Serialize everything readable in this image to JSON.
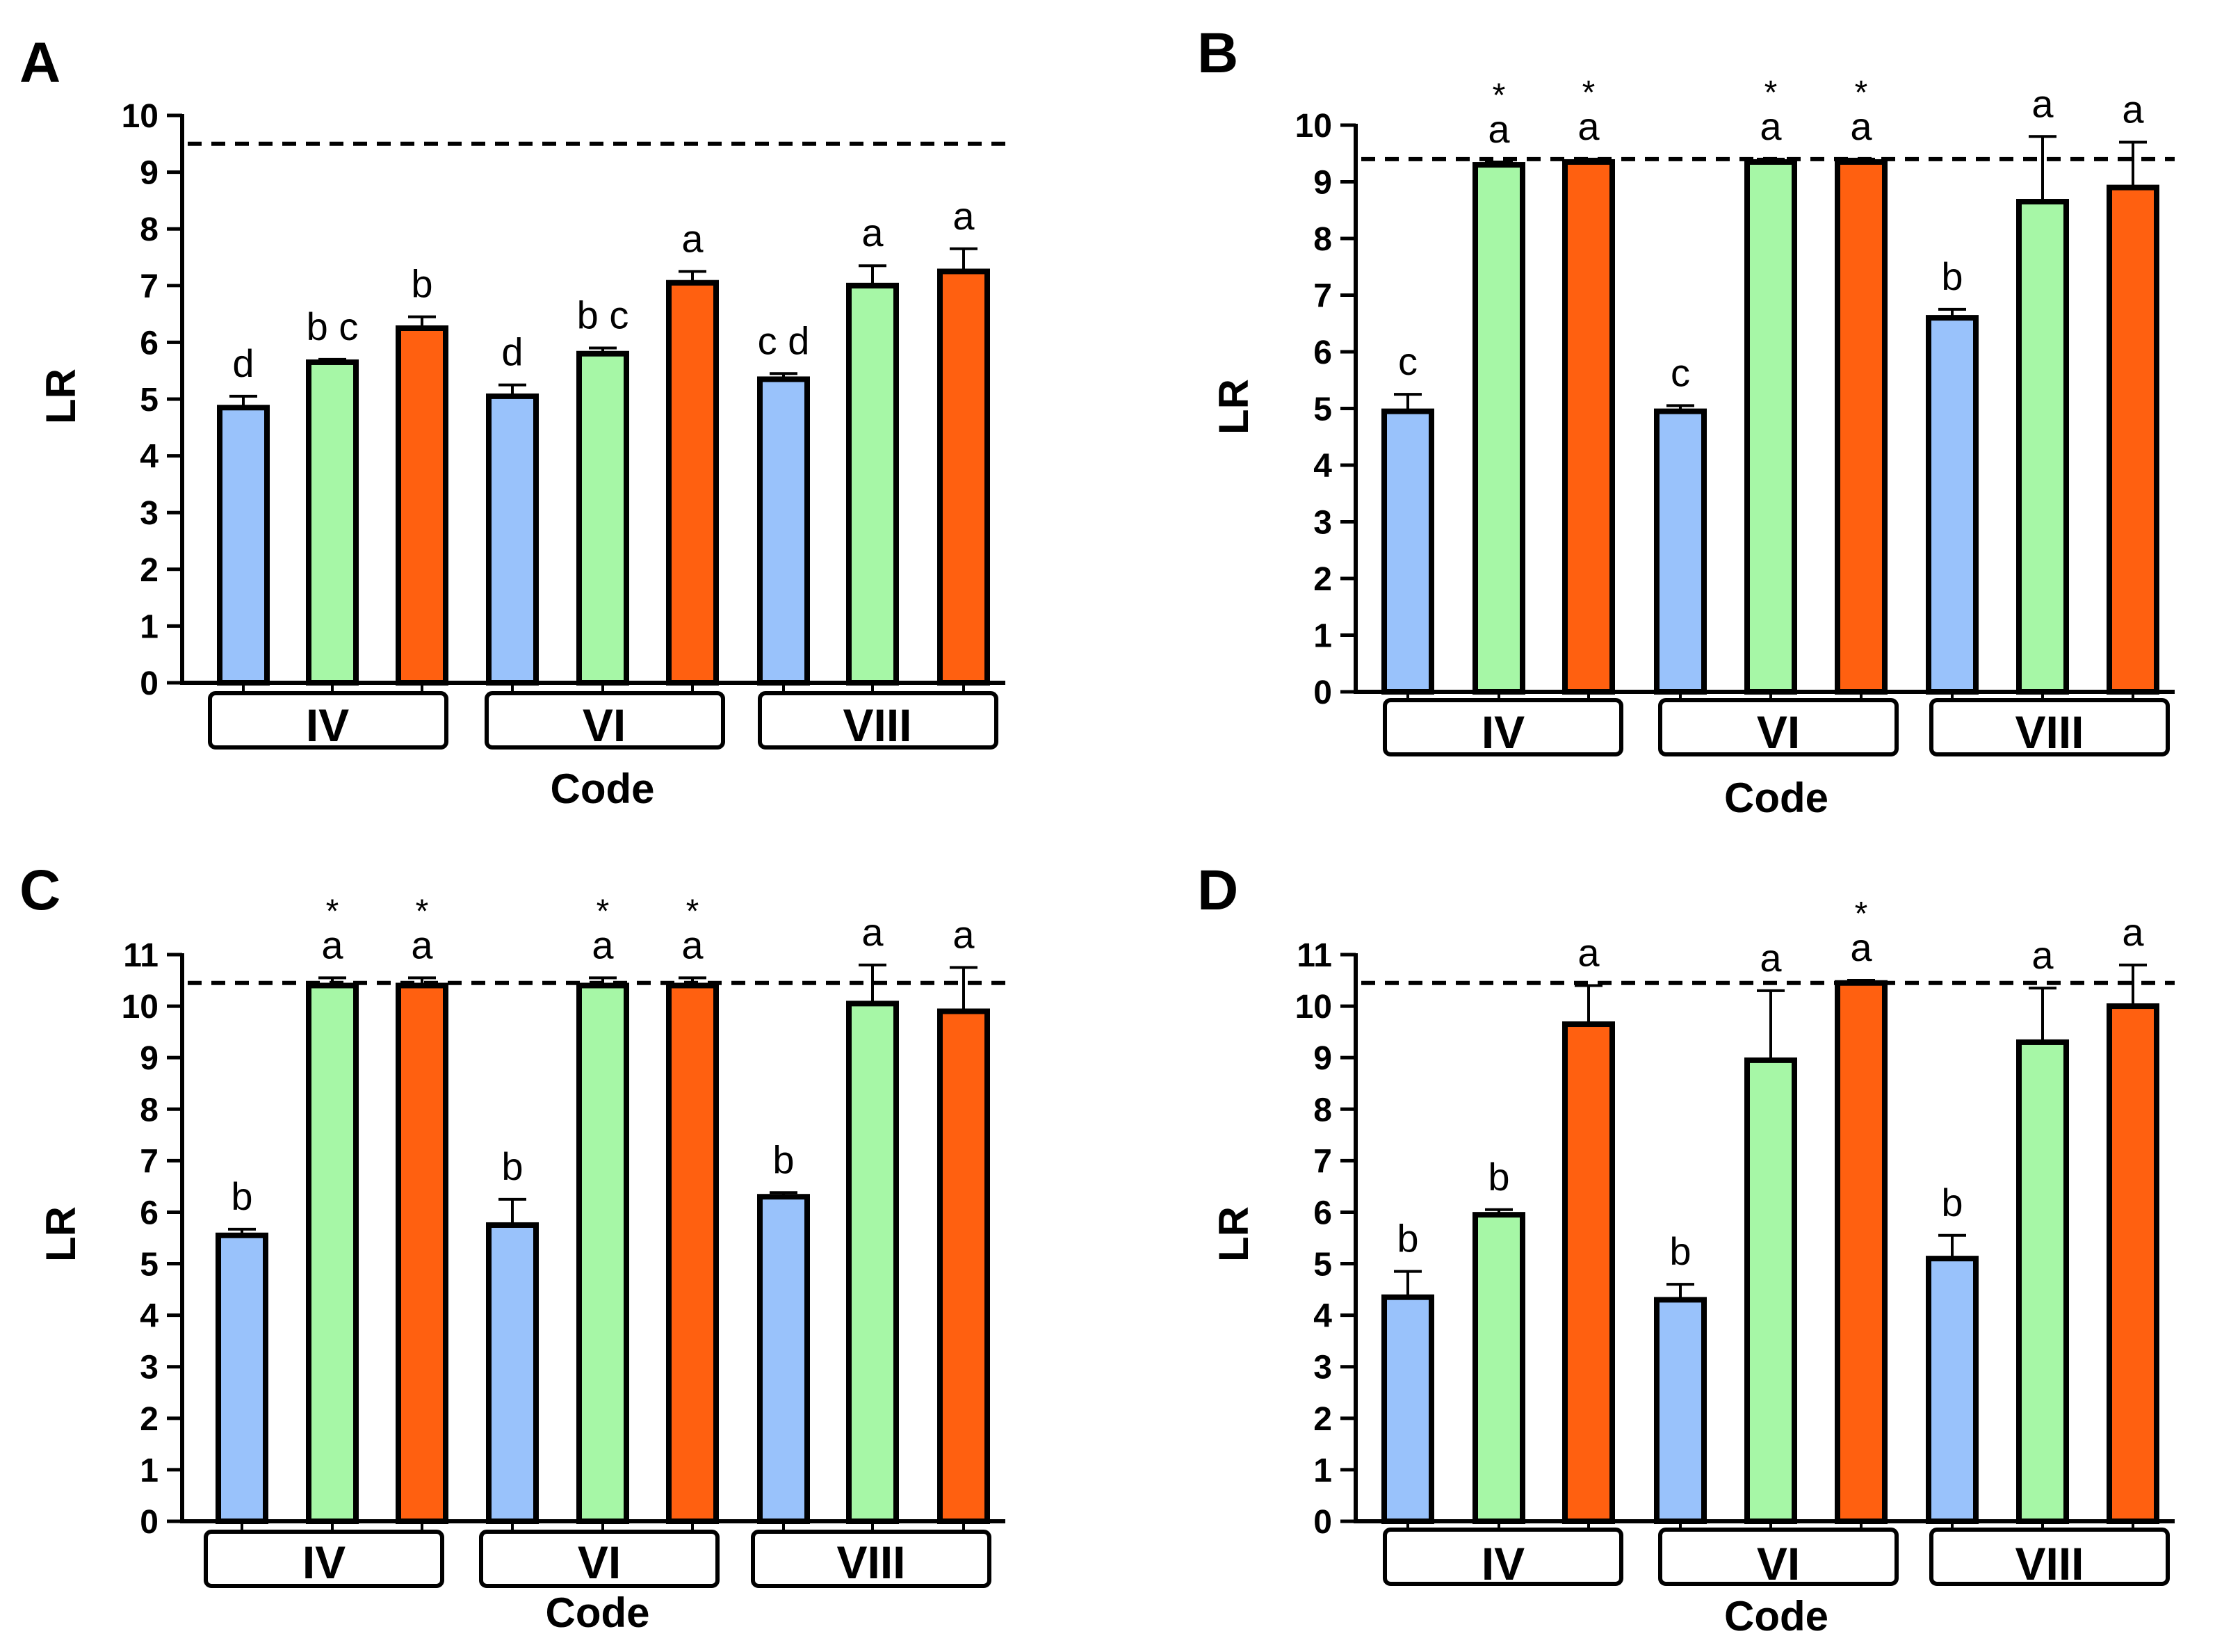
{
  "chart_data": [
    {
      "panel": "A",
      "type": "bar",
      "xlabel": "Code",
      "ylabel": "LR",
      "ylim": [
        0,
        10
      ],
      "yticks": [
        "0",
        "1",
        "2",
        "3",
        "4",
        "5",
        "6",
        "7",
        "8",
        "9",
        "10"
      ],
      "reference_line": 9.5,
      "groups": [
        {
          "label": "IV",
          "bars": [
            {
              "value": 4.85,
              "error": 0.2,
              "letter": "d",
              "star": ""
            },
            {
              "value": 5.65,
              "error": 0.05,
              "letter": "b c",
              "star": ""
            },
            {
              "value": 6.25,
              "error": 0.2,
              "letter": "b",
              "star": ""
            }
          ]
        },
        {
          "label": "VI",
          "bars": [
            {
              "value": 5.05,
              "error": 0.2,
              "letter": "d",
              "star": ""
            },
            {
              "value": 5.8,
              "error": 0.1,
              "letter": "b c",
              "star": ""
            },
            {
              "value": 7.05,
              "error": 0.2,
              "letter": "a",
              "star": ""
            }
          ]
        },
        {
          "label": "VIII",
          "bars": [
            {
              "value": 5.35,
              "error": 0.1,
              "letter": "c d",
              "star": ""
            },
            {
              "value": 7.0,
              "error": 0.35,
              "letter": "a",
              "star": ""
            },
            {
              "value": 7.25,
              "error": 0.4,
              "letter": "a",
              "star": ""
            }
          ]
        }
      ]
    },
    {
      "panel": "B",
      "type": "bar",
      "xlabel": "Code",
      "ylabel": "LR",
      "ylim": [
        0,
        10
      ],
      "yticks": [
        "0",
        "1",
        "2",
        "3",
        "4",
        "5",
        "6",
        "7",
        "8",
        "9",
        "10"
      ],
      "reference_line": 9.4,
      "groups": [
        {
          "label": "IV",
          "bars": [
            {
              "value": 4.95,
              "error": 0.3,
              "letter": "c",
              "star": ""
            },
            {
              "value": 9.3,
              "error": 0.05,
              "letter": "a",
              "star": "*"
            },
            {
              "value": 9.35,
              "error": 0.05,
              "letter": "a",
              "star": "*"
            }
          ]
        },
        {
          "label": "VI",
          "bars": [
            {
              "value": 4.95,
              "error": 0.1,
              "letter": "c",
              "star": ""
            },
            {
              "value": 9.35,
              "error": 0.05,
              "letter": "a",
              "star": "*"
            },
            {
              "value": 9.35,
              "error": 0.05,
              "letter": "a",
              "star": "*"
            }
          ]
        },
        {
          "label": "VIII",
          "bars": [
            {
              "value": 6.6,
              "error": 0.15,
              "letter": "b",
              "star": ""
            },
            {
              "value": 8.65,
              "error": 1.15,
              "letter": "a",
              "star": ""
            },
            {
              "value": 8.9,
              "error": 0.8,
              "letter": "a",
              "star": ""
            }
          ]
        }
      ]
    },
    {
      "panel": "C",
      "type": "bar",
      "xlabel": "Code",
      "ylabel": "LR",
      "ylim": [
        0,
        11
      ],
      "yticks": [
        "0",
        "1",
        "2",
        "3",
        "4",
        "5",
        "6",
        "7",
        "8",
        "9",
        "10",
        "11"
      ],
      "reference_line": 10.45,
      "groups": [
        {
          "label": "IV",
          "bars": [
            {
              "value": 5.55,
              "error": 0.12,
              "letter": "b",
              "star": ""
            },
            {
              "value": 10.4,
              "error": 0.15,
              "letter": "a",
              "star": "*"
            },
            {
              "value": 10.4,
              "error": 0.15,
              "letter": "a",
              "star": "*"
            }
          ]
        },
        {
          "label": "VI",
          "bars": [
            {
              "value": 5.75,
              "error": 0.5,
              "letter": "b",
              "star": ""
            },
            {
              "value": 10.4,
              "error": 0.15,
              "letter": "a",
              "star": "*"
            },
            {
              "value": 10.4,
              "error": 0.15,
              "letter": "a",
              "star": "*"
            }
          ]
        },
        {
          "label": "VIII",
          "bars": [
            {
              "value": 6.3,
              "error": 0.08,
              "letter": "b",
              "star": ""
            },
            {
              "value": 10.05,
              "error": 0.75,
              "letter": "a",
              "star": ""
            },
            {
              "value": 9.9,
              "error": 0.85,
              "letter": "a",
              "star": ""
            }
          ]
        }
      ]
    },
    {
      "panel": "D",
      "type": "bar",
      "xlabel": "Code",
      "ylabel": "LR",
      "ylim": [
        0,
        11
      ],
      "yticks": [
        "0",
        "1",
        "2",
        "3",
        "4",
        "5",
        "6",
        "7",
        "8",
        "9",
        "10",
        "11"
      ],
      "reference_line": 10.45,
      "groups": [
        {
          "label": "IV",
          "bars": [
            {
              "value": 4.35,
              "error": 0.5,
              "letter": "b",
              "star": ""
            },
            {
              "value": 5.95,
              "error": 0.1,
              "letter": "b",
              "star": ""
            },
            {
              "value": 9.65,
              "error": 0.75,
              "letter": "a",
              "star": ""
            }
          ]
        },
        {
          "label": "VI",
          "bars": [
            {
              "value": 4.3,
              "error": 0.3,
              "letter": "b",
              "star": ""
            },
            {
              "value": 8.95,
              "error": 1.35,
              "letter": "a",
              "star": ""
            },
            {
              "value": 10.45,
              "error": 0.05,
              "letter": "a",
              "star": "*"
            }
          ]
        },
        {
          "label": "VIII",
          "bars": [
            {
              "value": 5.1,
              "error": 0.45,
              "letter": "b",
              "star": ""
            },
            {
              "value": 9.3,
              "error": 1.05,
              "letter": "a",
              "star": ""
            },
            {
              "value": 10.0,
              "error": 0.8,
              "letter": "a",
              "star": ""
            }
          ]
        }
      ]
    }
  ],
  "colors": {
    "series_1": "#99c2fb",
    "series_2": "#a6f7a6",
    "series_3": "#ff6010",
    "axis": "#000000"
  }
}
